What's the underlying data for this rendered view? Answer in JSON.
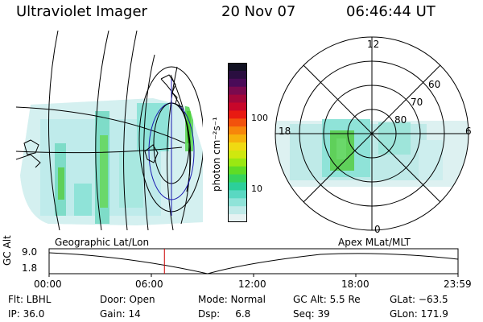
{
  "header": {
    "title": "Ultraviolet Imager",
    "date": "20 Nov 07",
    "time": "06:46:44 UT"
  },
  "colorbar": {
    "unit_label": "photon cm⁻²s⁻¹",
    "ticks": [
      "100",
      "10"
    ],
    "colors": [
      "#111122",
      "#2a0e40",
      "#4a0b58",
      "#7a0a4e",
      "#a3073a",
      "#c8072a",
      "#e81a12",
      "#f2520c",
      "#f7860a",
      "#f6b20b",
      "#f0da12",
      "#cfe80f",
      "#9ae812",
      "#5fdc26",
      "#36d35c",
      "#2ccf9a",
      "#5ad8c2",
      "#8fe3d8",
      "#bfeae8",
      "#e6f2f2"
    ]
  },
  "polar_plot": {
    "mlt_labels": {
      "top": "12",
      "left": "18",
      "right": "6",
      "bottom": "0"
    },
    "lat_labels": [
      "60",
      "70",
      "80"
    ]
  },
  "timeline": {
    "y_axis_label": "GC Alt",
    "y_ticks": [
      "9.0",
      "1.8"
    ],
    "left_title": "Geographic Lat/Lon",
    "right_title": "Apex  MLat/MLT",
    "x_ticks": [
      "00:00",
      "06:00",
      "12:00",
      "18:00",
      "23:59"
    ],
    "current_time_color": "#cc0000",
    "current_time_fraction": 0.282
  },
  "footer": {
    "col1": [
      "Flt: LBHL",
      "IP: 36.0"
    ],
    "col2": [
      "Door: Open",
      "Gain: 14"
    ],
    "col3": [
      "Mode: Normal",
      "Dsp:     6.8"
    ],
    "col4": [
      "GC Alt: 5.5 Re",
      "Seq: 39"
    ],
    "col5": [
      "GLat: −63.5",
      "GLon: 171.9"
    ]
  }
}
